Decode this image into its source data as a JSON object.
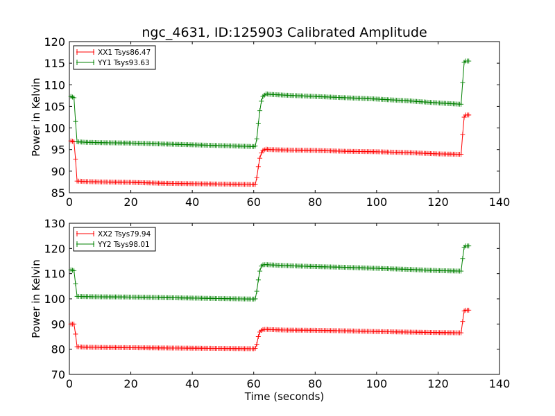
{
  "figure": {
    "title": "ngc_4631, ID:125903 Calibrated Amplitude",
    "xlabel": "Time (seconds)",
    "ylabel": "Power in Kelvin",
    "colors": {
      "xx": "#ff0000",
      "yy": "#008000"
    }
  },
  "chart_data": [
    {
      "type": "line",
      "xlim": [
        0,
        140
      ],
      "ylim": [
        85,
        120
      ],
      "xticks": [
        0,
        20,
        40,
        60,
        80,
        100,
        120,
        140
      ],
      "yticks": [
        85,
        90,
        95,
        100,
        105,
        110,
        115,
        120
      ],
      "legend_placement": "top-left",
      "grid": false,
      "ylabel": "Power in Kelvin",
      "series": [
        {
          "name": "XX1 Tsys86.47",
          "color": "#ff0000",
          "x": [
            0.5,
            1.5,
            2,
            2.5,
            5,
            10,
            20,
            30,
            40,
            50,
            60,
            60.5,
            61,
            61.5,
            62,
            62.5,
            63,
            64,
            65,
            70,
            80,
            90,
            100,
            110,
            120,
            127.5,
            128,
            128.5,
            129,
            130
          ],
          "y": [
            97.0,
            96.8,
            92.8,
            87.7,
            87.6,
            87.5,
            87.4,
            87.2,
            87.1,
            87.0,
            86.9,
            86.9,
            88.5,
            91.0,
            93.0,
            94.2,
            94.8,
            95.1,
            95.0,
            94.9,
            94.8,
            94.6,
            94.5,
            94.3,
            94.0,
            93.9,
            98.5,
            102.5,
            103.0,
            103.0
          ]
        },
        {
          "name": "YY1 Tsys93.63",
          "color": "#008000",
          "x": [
            0.5,
            1.5,
            2,
            2.5,
            5,
            10,
            20,
            30,
            40,
            50,
            60,
            60.5,
            61,
            61.5,
            62,
            62.5,
            63,
            64,
            65,
            70,
            80,
            90,
            100,
            110,
            120,
            127.5,
            128,
            128.5,
            129,
            130
          ],
          "y": [
            107.3,
            107.0,
            101.5,
            96.8,
            96.7,
            96.6,
            96.5,
            96.3,
            96.1,
            95.9,
            95.7,
            95.8,
            97.5,
            101.0,
            104.0,
            106.2,
            107.3,
            107.9,
            107.8,
            107.6,
            107.3,
            107.0,
            106.7,
            106.3,
            105.8,
            105.5,
            110.5,
            115.2,
            115.5,
            115.5
          ]
        }
      ]
    },
    {
      "type": "line",
      "xlim": [
        0,
        140
      ],
      "ylim": [
        70,
        130
      ],
      "xticks": [
        0,
        20,
        40,
        60,
        80,
        100,
        120,
        140
      ],
      "yticks": [
        70,
        80,
        90,
        100,
        110,
        120,
        130
      ],
      "legend_placement": "top-left",
      "grid": false,
      "xlabel": "Time (seconds)",
      "ylabel": "Power in Kelvin",
      "series": [
        {
          "name": "XX2 Tsys79.94",
          "color": "#ff0000",
          "x": [
            0.5,
            1.5,
            2,
            2.5,
            5,
            10,
            20,
            30,
            40,
            50,
            60,
            60.5,
            61,
            61.5,
            62,
            62.5,
            63,
            64,
            65,
            70,
            80,
            90,
            100,
            110,
            120,
            127.5,
            128,
            128.5,
            129,
            130
          ],
          "y": [
            90.0,
            90.0,
            86.0,
            81.0,
            80.8,
            80.7,
            80.6,
            80.5,
            80.4,
            80.3,
            80.2,
            80.3,
            82.0,
            85.0,
            86.8,
            87.5,
            87.8,
            87.9,
            87.8,
            87.6,
            87.5,
            87.3,
            87.0,
            86.8,
            86.6,
            86.5,
            91.0,
            95.2,
            95.5,
            95.5
          ]
        },
        {
          "name": "YY2 Tsys98.01",
          "color": "#008000",
          "x": [
            0.5,
            1.5,
            2,
            2.5,
            5,
            10,
            20,
            30,
            40,
            50,
            60,
            60.5,
            61,
            61.5,
            62,
            62.5,
            63,
            64,
            65,
            70,
            80,
            90,
            100,
            110,
            120,
            127.5,
            128,
            128.5,
            129,
            130
          ],
          "y": [
            111.5,
            111.2,
            106.0,
            101.0,
            100.9,
            100.8,
            100.7,
            100.5,
            100.3,
            100.1,
            99.9,
            100.0,
            103.0,
            107.5,
            111.0,
            113.0,
            113.5,
            113.6,
            113.5,
            113.2,
            112.8,
            112.5,
            112.1,
            111.7,
            111.2,
            111.0,
            116.0,
            120.5,
            121.0,
            121.0
          ]
        }
      ]
    }
  ]
}
